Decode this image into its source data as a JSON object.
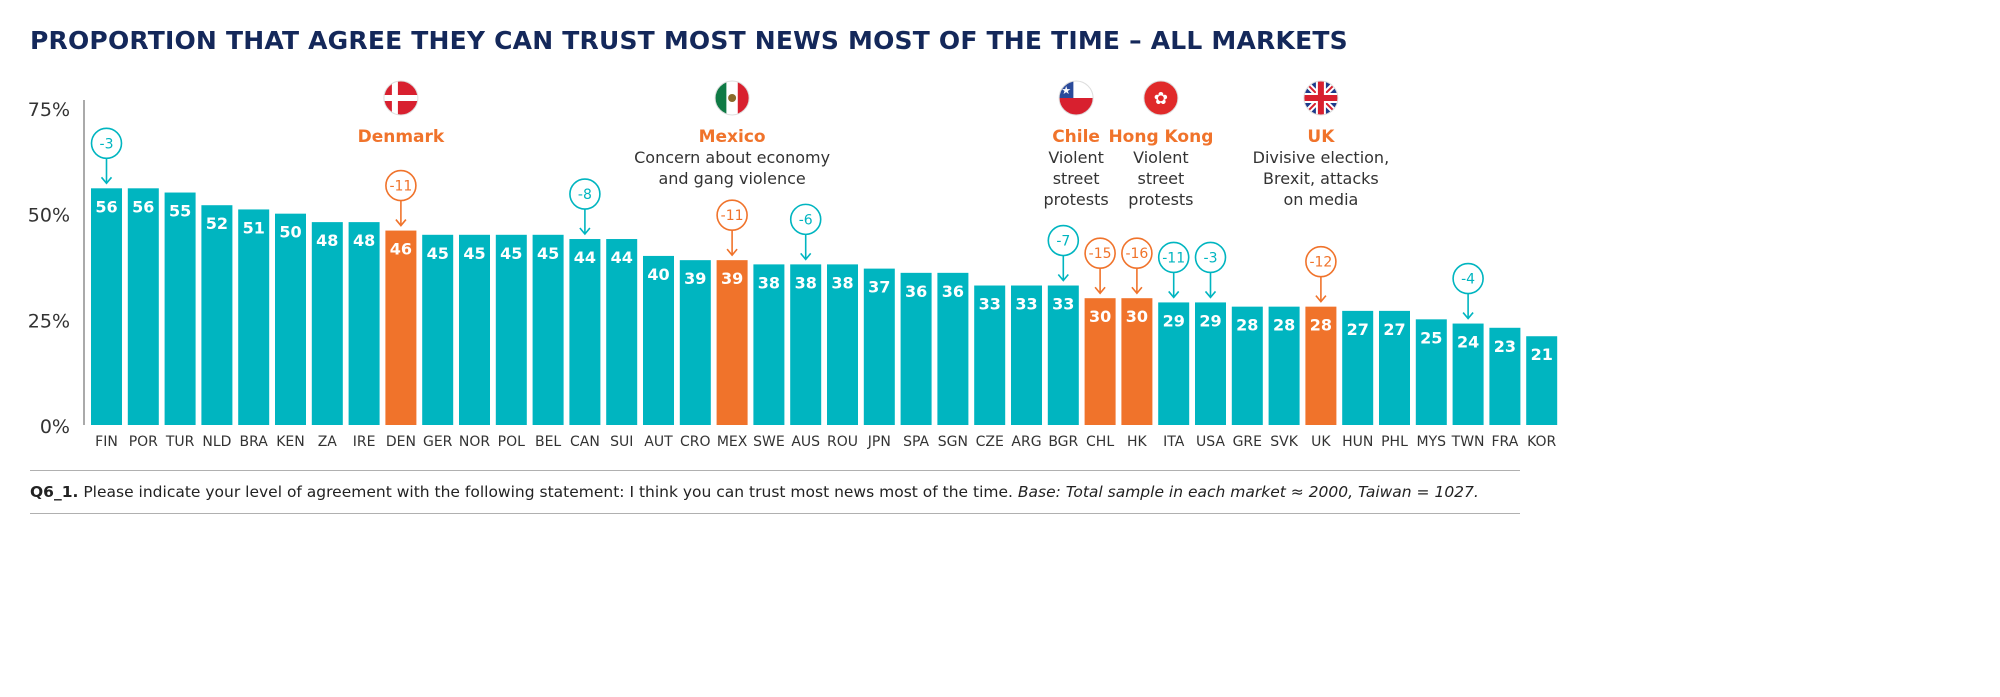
{
  "colors": {
    "bar": "#00b5c0",
    "highlight": "#f0732b",
    "title": "#14285a",
    "text": "#333333"
  },
  "chart_data": {
    "type": "bar",
    "title": "PROPORTION THAT AGREE THEY CAN TRUST MOST NEWS MOST OF THE TIME – ALL MARKETS",
    "ylim": [
      0,
      75
    ],
    "yticks": [
      0,
      25,
      50,
      75
    ],
    "ytick_labels": [
      "0%",
      "25%",
      "50%",
      "75%"
    ],
    "grid": false,
    "categories": [
      "FIN",
      "POR",
      "TUR",
      "NLD",
      "BRA",
      "KEN",
      "ZA",
      "IRE",
      "DEN",
      "GER",
      "NOR",
      "POL",
      "BEL",
      "CAN",
      "SUI",
      "AUT",
      "CRO",
      "MEX",
      "SWE",
      "AUS",
      "ROU",
      "JPN",
      "SPA",
      "SGN",
      "CZE",
      "ARG",
      "BGR",
      "CHL",
      "HK",
      "ITA",
      "USA",
      "GRE",
      "SVK",
      "UK",
      "HUN",
      "PHL",
      "MYS",
      "TWN",
      "FRA",
      "KOR"
    ],
    "values": [
      56,
      56,
      55,
      52,
      51,
      50,
      48,
      48,
      46,
      45,
      45,
      45,
      45,
      44,
      44,
      40,
      39,
      39,
      38,
      38,
      38,
      37,
      36,
      36,
      33,
      33,
      33,
      30,
      30,
      29,
      29,
      28,
      28,
      28,
      27,
      27,
      25,
      24,
      23,
      21
    ],
    "highlighted": [
      "DEN",
      "MEX",
      "CHL",
      "HK",
      "UK"
    ],
    "changes": [
      {
        "category": "FIN",
        "label": "-3"
      },
      {
        "category": "DEN",
        "label": "-11"
      },
      {
        "category": "CAN",
        "label": "-8"
      },
      {
        "category": "MEX",
        "label": "-11"
      },
      {
        "category": "AUS",
        "label": "-6"
      },
      {
        "category": "BGR",
        "label": "-7"
      },
      {
        "category": "CHL",
        "label": "-15"
      },
      {
        "category": "HK",
        "label": "-16"
      },
      {
        "category": "ITA",
        "label": "-11"
      },
      {
        "category": "USA",
        "label": "-3"
      },
      {
        "category": "UK",
        "label": "-12"
      },
      {
        "category": "TWN",
        "label": "-4"
      }
    ],
    "annotations": [
      {
        "category": "DEN",
        "name": "Denmark",
        "flag": "denmark-flag",
        "note": []
      },
      {
        "category": "MEX",
        "name": "Mexico",
        "flag": "mexico-flag",
        "note": [
          "Concern about economy",
          "and gang violence"
        ]
      },
      {
        "category": "CHL",
        "name": "Chile",
        "flag": "chile-flag",
        "note": [
          "Violent",
          "street",
          "protests"
        ]
      },
      {
        "category": "HK",
        "name": "Hong Kong",
        "flag": "hong-kong-flag",
        "note": [
          "Violent",
          "street",
          "protests"
        ]
      },
      {
        "category": "UK",
        "name": "UK",
        "flag": "uk-flag",
        "note": [
          "Divisive election,",
          "Brexit, attacks",
          "on media"
        ]
      }
    ]
  },
  "footnote": {
    "code": "Q6_1.",
    "question": " Please indicate your level of agreement with the following statement: I think you can trust most news most of the time. ",
    "base": "Base: Total sample in each market ≈ 2000, Taiwan = 1027."
  }
}
